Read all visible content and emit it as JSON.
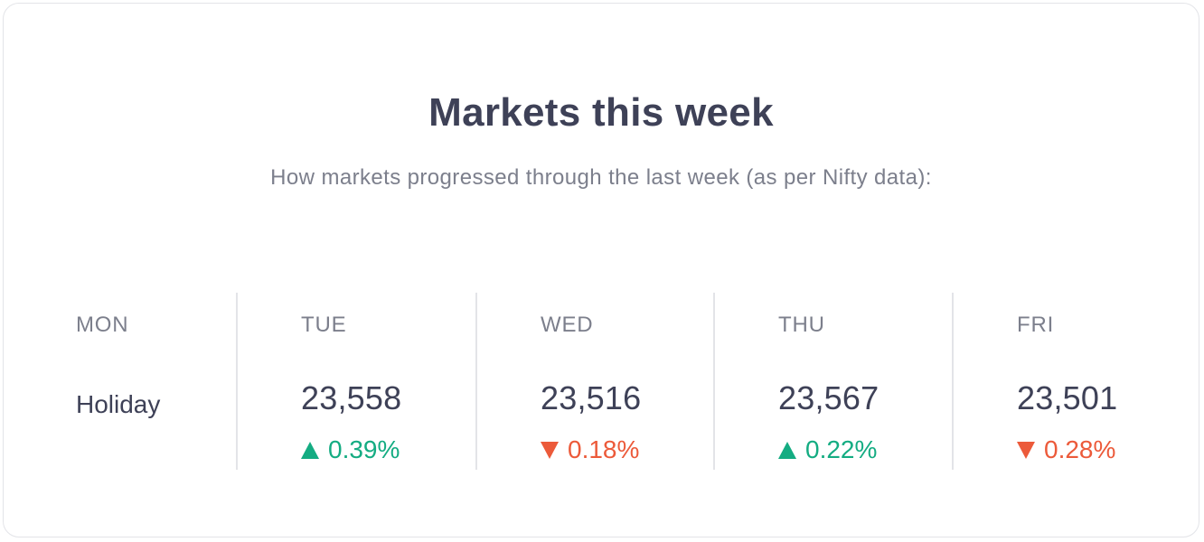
{
  "card": {
    "title": "Markets this week",
    "subtitle": "How markets progressed through the last week (as per Nifty data):"
  },
  "days": [
    {
      "label": "MON",
      "holiday": "Holiday"
    },
    {
      "label": "TUE",
      "value": "23,558",
      "change": "0.39%",
      "direction": "up"
    },
    {
      "label": "WED",
      "value": "23,516",
      "change": "0.18%",
      "direction": "down"
    },
    {
      "label": "THU",
      "value": "23,567",
      "change": "0.22%",
      "direction": "up"
    },
    {
      "label": "FRI",
      "value": "23,501",
      "change": "0.28%",
      "direction": "down"
    }
  ],
  "colors": {
    "up": "#14ac82",
    "down": "#ec5a3a",
    "text_primary": "#3e4157",
    "text_secondary": "#7c7f8c",
    "border": "#e3e4e8"
  },
  "icons": {
    "up": "triangle-up-icon",
    "down": "triangle-down-icon"
  }
}
